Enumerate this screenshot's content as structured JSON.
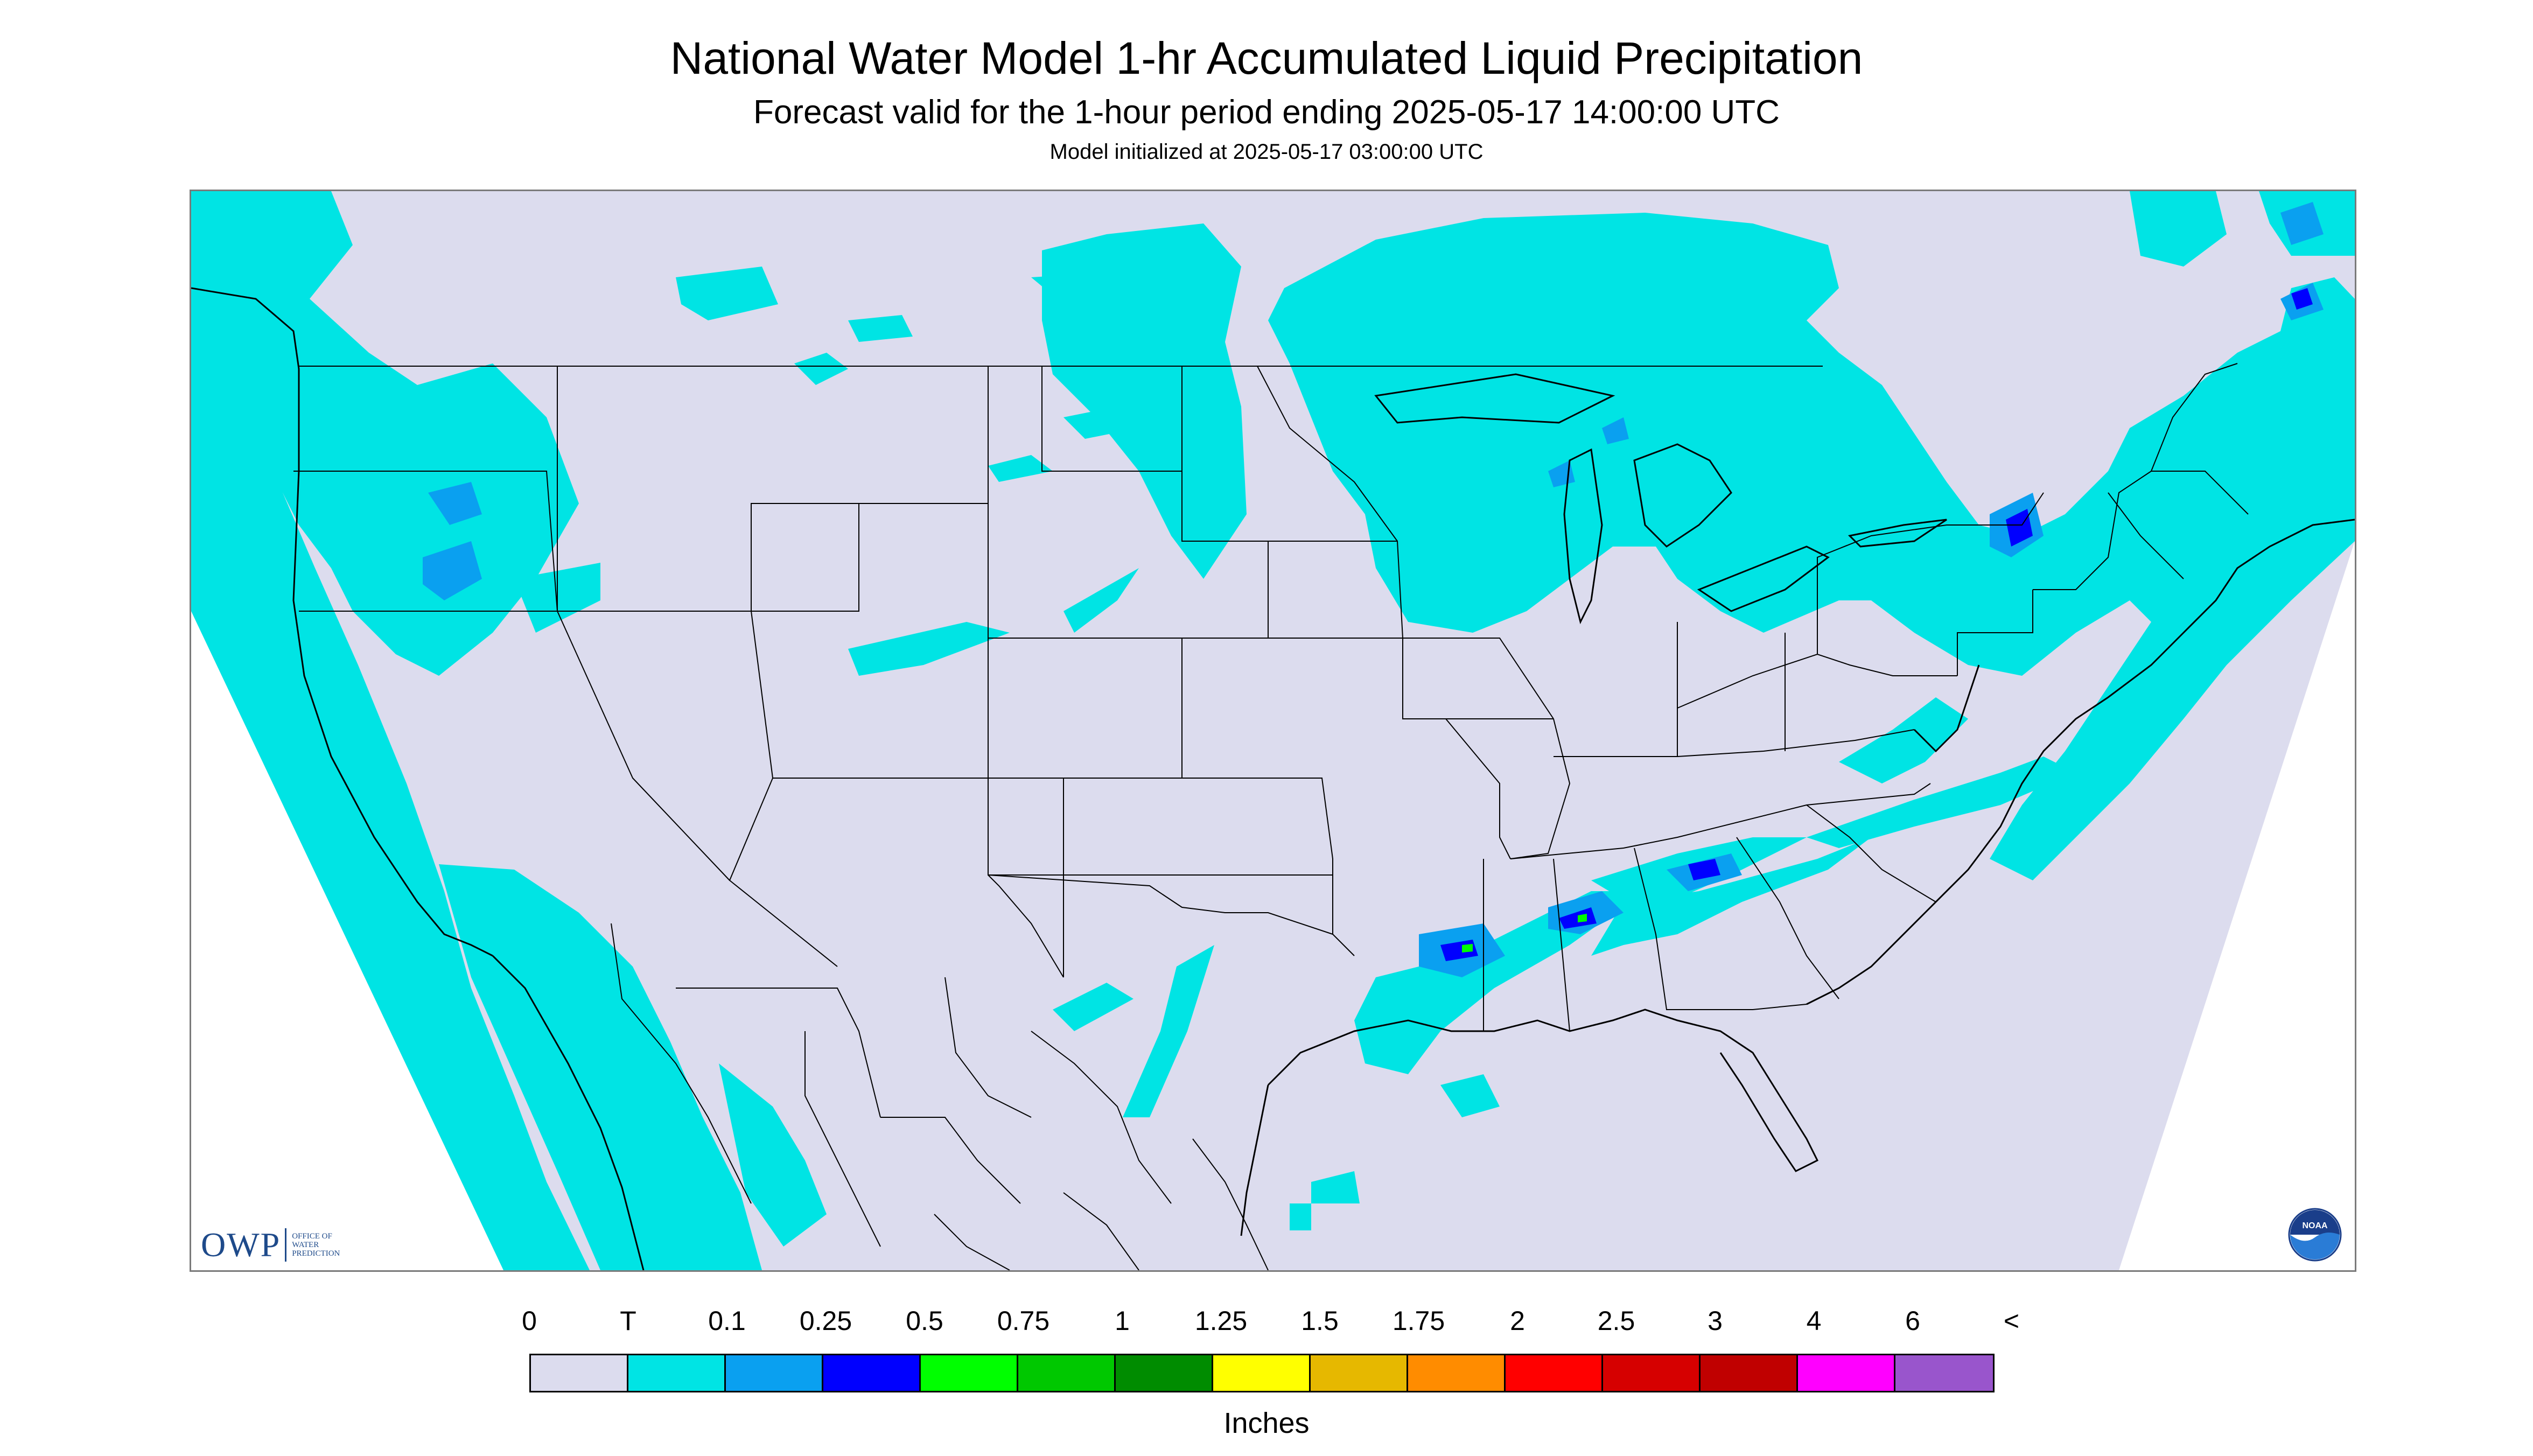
{
  "title": "National Water Model 1-hr Accumulated Liquid Precipitation",
  "subtitle": "Forecast valid for the 1-hour period ending 2025-05-17 14:00:00 UTC",
  "init_line": "Model initialized at 2025-05-17 03:00:00 UTC",
  "logos": {
    "owp_mark": "OWP",
    "owp_name": "OFFICE OF WATER PREDICTION",
    "noaa_mark": "NOAA"
  },
  "icons": {
    "owp": "owp-logo-icon",
    "noaa": "noaa-logo-icon"
  },
  "colors": {
    "no_precip": "#dcdcee",
    "trace": "#00e4e4",
    "light_blue": "#0aa0f0",
    "blue": "#0000ff",
    "land_border": "#000000"
  },
  "legend": {
    "labels": [
      "0",
      "T",
      "0.1",
      "0.25",
      "0.5",
      "0.75",
      "1",
      "1.25",
      "1.5",
      "1.75",
      "2",
      "2.5",
      "3",
      "4",
      "6",
      "<"
    ],
    "colors": [
      "#dcdcee",
      "#00e4e4",
      "#0aa0f0",
      "#0000ff",
      "#00ff00",
      "#00c800",
      "#008c00",
      "#ffff00",
      "#e6b800",
      "#ff8c00",
      "#ff0000",
      "#d60000",
      "#c00000",
      "#ff00ff",
      "#9955cc"
    ],
    "units": "Inches"
  }
}
